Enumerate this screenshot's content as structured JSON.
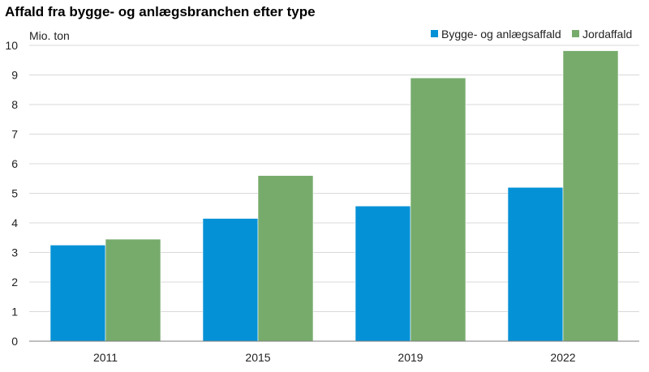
{
  "chart_data": {
    "type": "bar",
    "title": "Affald fra bygge- og anlægsbranchen efter type",
    "ylabel": "Mio. ton",
    "xlabel": "",
    "categories": [
      "2011",
      "2015",
      "2019",
      "2022"
    ],
    "series": [
      {
        "name": "Bygge- og anlægsaffald",
        "values": [
          3.25,
          4.15,
          4.57,
          5.2
        ],
        "color": "#0591d6"
      },
      {
        "name": "Jordaffald",
        "values": [
          3.45,
          5.6,
          8.9,
          9.82
        ],
        "color": "#77ab6c"
      }
    ],
    "ylim": [
      0,
      10
    ],
    "yticks": [
      "0",
      "1",
      "2",
      "3",
      "4",
      "5",
      "6",
      "7",
      "8",
      "9",
      "10"
    ],
    "grid": true,
    "legend_position": "top-right"
  }
}
